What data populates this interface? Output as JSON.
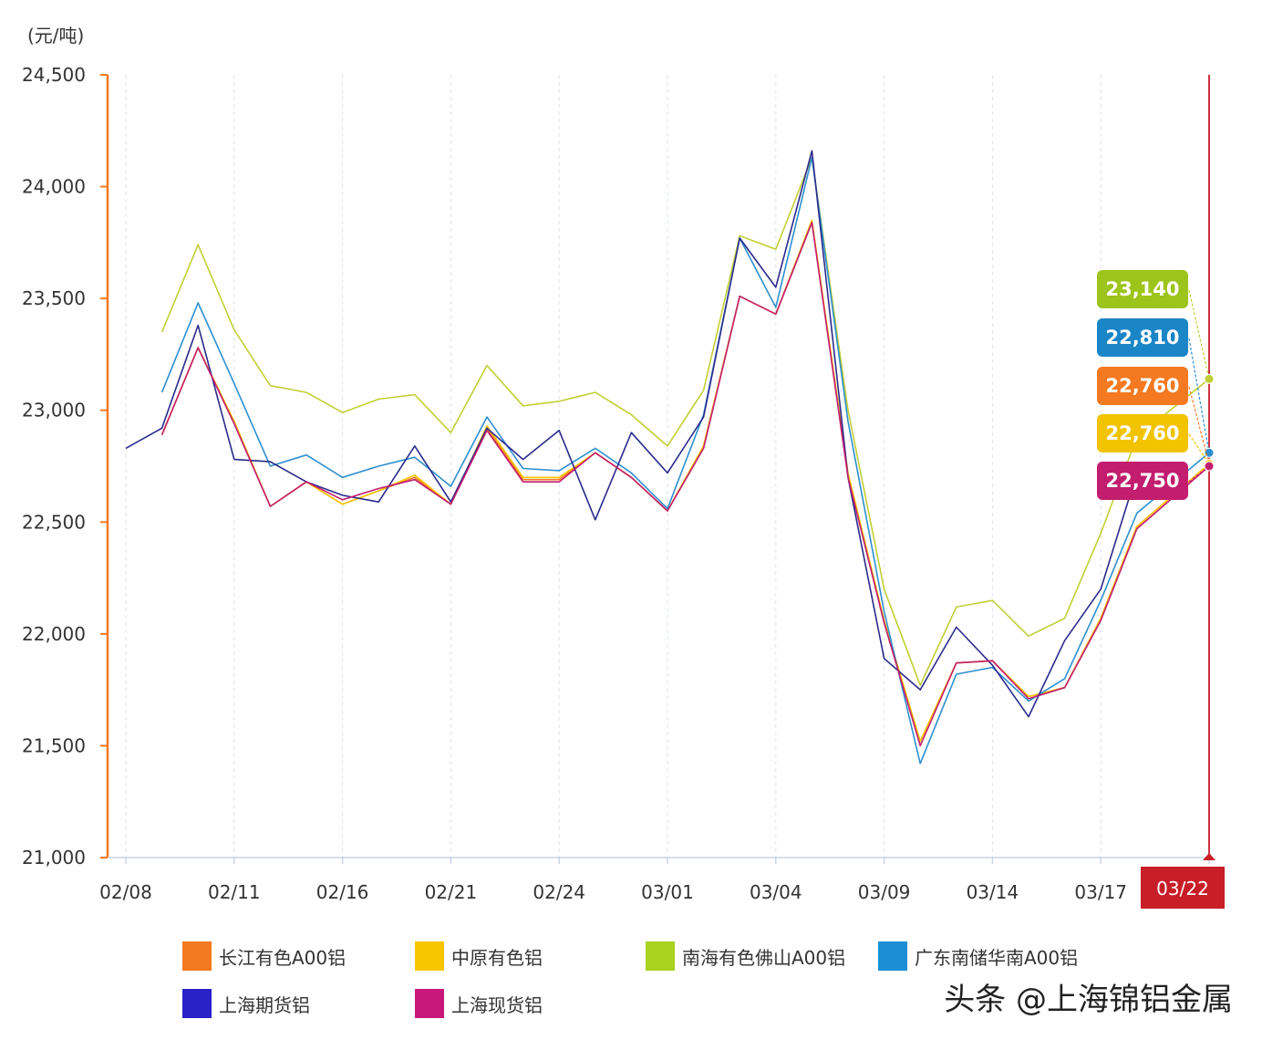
{
  "chart_data": {
    "type": "line",
    "unit_label": "(元/吨)",
    "ylim": [
      21000,
      24500
    ],
    "y_ticks": [
      "24,500",
      "24,000",
      "23,500",
      "23,000",
      "22,500",
      "22,000",
      "21,500",
      "21,000"
    ],
    "y_tick_values": [
      24500,
      24000,
      23500,
      23000,
      22500,
      22000,
      21500,
      21000
    ],
    "x_tick_labels": [
      "02/08",
      "02/11",
      "02/16",
      "02/21",
      "02/24",
      "03/01",
      "03/04",
      "03/09",
      "03/14",
      "03/17",
      "03/22"
    ],
    "x_tick_index": [
      0,
      3,
      6,
      9,
      12,
      15,
      18,
      21,
      24,
      27,
      30
    ],
    "crosshair_label": "03/22",
    "crosshair_index": 30,
    "grid": "vertical-dashed",
    "legend_position": "bottom",
    "series": [
      {
        "name": "长江有色A00铝",
        "color": "#f47920",
        "values": [
          null,
          22890,
          23280,
          22950,
          22570,
          22680,
          22580,
          22640,
          22700,
          22580,
          22920,
          22690,
          22690,
          22810,
          22700,
          22550,
          22840,
          23510,
          23430,
          23840,
          22710,
          22050,
          21520,
          21870,
          21880,
          21720,
          21760,
          22070,
          22480,
          null,
          22760
        ]
      },
      {
        "name": "中原有色铝",
        "color": "#f7c600",
        "values": [
          null,
          22890,
          23280,
          22950,
          22570,
          22680,
          22580,
          22640,
          22710,
          22580,
          22930,
          22700,
          22700,
          22810,
          22700,
          22550,
          22840,
          23510,
          23430,
          23850,
          22720,
          22060,
          21520,
          21870,
          21880,
          21720,
          21760,
          22070,
          22480,
          null,
          22760
        ]
      },
      {
        "name": "南海有色佛山A00铝",
        "color": "#c2cf35",
        "values": [
          null,
          23350,
          23740,
          23360,
          23110,
          23080,
          22990,
          23050,
          23070,
          22900,
          23200,
          23020,
          23040,
          23080,
          22980,
          22840,
          23090,
          23780,
          23720,
          24130,
          23000,
          22200,
          21770,
          22120,
          22150,
          21990,
          22070,
          22450,
          22880,
          null,
          23140
        ]
      },
      {
        "name": "广东南储华南A00铝",
        "color": "#2d8fcf",
        "values": [
          null,
          23080,
          23480,
          23120,
          22750,
          22800,
          22700,
          22750,
          22790,
          22660,
          22970,
          22740,
          22730,
          22830,
          22720,
          22560,
          22980,
          23770,
          23460,
          24130,
          22950,
          22100,
          21420,
          21820,
          21850,
          21700,
          21800,
          22150,
          22540,
          null,
          22810
        ]
      },
      {
        "name": "上海期货铝",
        "color": "#2b2a8c",
        "values": [
          22830,
          22920,
          23380,
          22780,
          22770,
          22680,
          22620,
          22590,
          22840,
          22590,
          22920,
          22780,
          22910,
          22510,
          22900,
          22720,
          22970,
          23770,
          23550,
          24160,
          22700,
          21890,
          21750,
          22030,
          21860,
          21630,
          21970,
          22200,
          22720,
          null,
          null
        ]
      },
      {
        "name": "上海现货铝",
        "color": "#c21d6e",
        "values": [
          null,
          22890,
          23280,
          22940,
          22570,
          22680,
          22600,
          22650,
          22690,
          22580,
          22910,
          22680,
          22680,
          22810,
          22700,
          22550,
          22830,
          23510,
          23430,
          23840,
          22700,
          22050,
          21500,
          21870,
          21880,
          21710,
          21760,
          22060,
          22470,
          null,
          22750
        ]
      }
    ],
    "tooltip_labels": [
      {
        "text": "23,140",
        "color": "#9dc41a",
        "value": 23140
      },
      {
        "text": "22,810",
        "color": "#1a86c8",
        "value": 22810
      },
      {
        "text": "22,760",
        "color": "#f47920",
        "value": 22760
      },
      {
        "text": "22,760",
        "color": "#f2c300",
        "value": 22760
      },
      {
        "text": "22,750",
        "color": "#c21d6e",
        "value": 22750
      }
    ],
    "tooltip_series_order": [
      2,
      3,
      0,
      1,
      5
    ]
  },
  "legend": [
    {
      "label": "长江有色A00铝",
      "color": "#f47920"
    },
    {
      "label": "中原有色铝",
      "color": "#f7c600"
    },
    {
      "label": "南海有色佛山A00铝",
      "color": "#a8d21e"
    },
    {
      "label": "广东南储华南A00铝",
      "color": "#1a8fd6"
    },
    {
      "label": "上海期货铝",
      "color": "#2a22c8"
    },
    {
      "label": "上海现货铝",
      "color": "#c8197a"
    }
  ],
  "watermark": "头条 @上海锦铝金属"
}
